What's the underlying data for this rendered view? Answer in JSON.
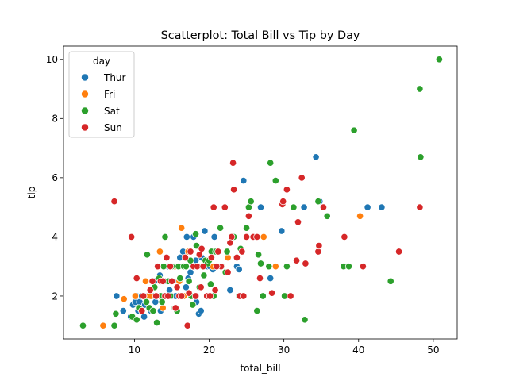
{
  "chart_data": {
    "type": "scatter",
    "title": "Scatterplot: Total Bill vs Tip by Day",
    "xlabel": "total_bill",
    "ylabel": "tip",
    "xlim": [
      0.5,
      53.2
    ],
    "ylim": [
      0.55,
      10.45
    ],
    "xticks": [
      10,
      20,
      30,
      40,
      50
    ],
    "yticks": [
      2,
      4,
      6,
      8,
      10
    ],
    "grid": false,
    "legend": {
      "title": "day",
      "placement": "top-left"
    },
    "series": [
      {
        "name": "Thur",
        "color": "#1f77b4",
        "points": [
          [
            7.6,
            2.0
          ],
          [
            8.5,
            1.5
          ],
          [
            9.5,
            1.3
          ],
          [
            9.8,
            1.7
          ],
          [
            10.1,
            1.8
          ],
          [
            10.3,
            2.0
          ],
          [
            10.7,
            1.8
          ],
          [
            11.0,
            2.0
          ],
          [
            11.3,
            1.3
          ],
          [
            11.4,
            1.7
          ],
          [
            11.7,
            2.0
          ],
          [
            12.0,
            2.0
          ],
          [
            12.2,
            1.5
          ],
          [
            12.5,
            2.0
          ],
          [
            12.7,
            2.5
          ],
          [
            12.9,
            2.0
          ],
          [
            13.0,
            2.0
          ],
          [
            13.3,
            2.0
          ],
          [
            13.5,
            1.5
          ],
          [
            13.8,
            2.0
          ],
          [
            14.0,
            2.5
          ],
          [
            14.3,
            2.0
          ],
          [
            14.7,
            2.2
          ],
          [
            15.0,
            2.0
          ],
          [
            15.5,
            2.0
          ],
          [
            15.9,
            2.5
          ],
          [
            16.3,
            2.0
          ],
          [
            16.6,
            2.0
          ],
          [
            16.9,
            2.3
          ],
          [
            17.2,
            2.6
          ],
          [
            17.5,
            2.8
          ],
          [
            17.8,
            3.0
          ],
          [
            18.3,
            1.8
          ],
          [
            18.6,
            1.4
          ],
          [
            18.9,
            1.5
          ],
          [
            19.4,
            4.2
          ],
          [
            19.8,
            3.0
          ],
          [
            20.1,
            3.0
          ],
          [
            20.5,
            2.9
          ],
          [
            20.7,
            4.0
          ],
          [
            16.5,
            3.5
          ],
          [
            17.0,
            4.0
          ],
          [
            17.9,
            4.0
          ],
          [
            18.2,
            3.2
          ],
          [
            19.0,
            3.3
          ],
          [
            20.9,
            3.5
          ],
          [
            22.8,
            2.2
          ],
          [
            23.7,
            3.0
          ],
          [
            24.0,
            2.9
          ],
          [
            24.6,
            5.9
          ],
          [
            26.9,
            5.0
          ],
          [
            28.2,
            2.6
          ],
          [
            29.7,
            4.2
          ],
          [
            32.7,
            5.0
          ],
          [
            34.3,
            6.7
          ],
          [
            34.8,
            5.2
          ],
          [
            41.2,
            5.0
          ],
          [
            43.1,
            5.0
          ],
          [
            16.1,
            3.3
          ],
          [
            15.1,
            3.0
          ],
          [
            14.5,
            3.0
          ],
          [
            13.4,
            2.7
          ],
          [
            12.8,
            1.8
          ],
          [
            11.9,
            2.0
          ],
          [
            10.5,
            1.5
          ]
        ]
      },
      {
        "name": "Fri",
        "color": "#ff7f0e",
        "points": [
          [
            5.8,
            1.0
          ],
          [
            8.6,
            1.9
          ],
          [
            10.1,
            2.0
          ],
          [
            11.5,
            2.5
          ],
          [
            11.9,
            2.0
          ],
          [
            12.2,
            2.0
          ],
          [
            12.5,
            1.5
          ],
          [
            13.0,
            2.0
          ],
          [
            13.4,
            3.5
          ],
          [
            13.8,
            1.6
          ],
          [
            15.4,
            3.0
          ],
          [
            16.0,
            2.5
          ],
          [
            16.3,
            4.3
          ],
          [
            16.6,
            2.0
          ],
          [
            17.2,
            3.5
          ],
          [
            18.3,
            3.0
          ],
          [
            20.5,
            3.0
          ],
          [
            22.5,
            3.3
          ],
          [
            27.3,
            4.0
          ],
          [
            28.9,
            3.0
          ],
          [
            40.2,
            4.7
          ]
        ]
      },
      {
        "name": "Sat",
        "color": "#2ca02c",
        "points": [
          [
            3.1,
            1.0
          ],
          [
            7.3,
            1.0
          ],
          [
            7.5,
            1.4
          ],
          [
            9.7,
            1.3
          ],
          [
            10.3,
            1.2
          ],
          [
            10.6,
            1.6
          ],
          [
            11.0,
            1.5
          ],
          [
            11.6,
            1.8
          ],
          [
            11.7,
            3.4
          ],
          [
            12.0,
            1.6
          ],
          [
            12.5,
            1.5
          ],
          [
            13.0,
            1.1
          ],
          [
            13.3,
            2.6
          ],
          [
            13.5,
            2.0
          ],
          [
            13.9,
            3.0
          ],
          [
            14.1,
            4.0
          ],
          [
            14.5,
            2.5
          ],
          [
            14.8,
            2.0
          ],
          [
            15.0,
            3.0
          ],
          [
            15.4,
            1.6
          ],
          [
            15.7,
            1.5
          ],
          [
            15.9,
            3.0
          ],
          [
            16.0,
            2.0
          ],
          [
            16.3,
            2.0
          ],
          [
            16.6,
            3.0
          ],
          [
            16.9,
            3.0
          ],
          [
            17.3,
            2.5
          ],
          [
            17.6,
            2.0
          ],
          [
            17.8,
            1.7
          ],
          [
            18.0,
            3.0
          ],
          [
            18.2,
            4.1
          ],
          [
            18.3,
            3.7
          ],
          [
            18.5,
            3.0
          ],
          [
            18.7,
            2.3
          ],
          [
            19.1,
            3.0
          ],
          [
            19.5,
            3.2
          ],
          [
            19.8,
            3.1
          ],
          [
            20.0,
            3.2
          ],
          [
            20.2,
            2.4
          ],
          [
            20.3,
            3.5
          ],
          [
            20.6,
            2.0
          ],
          [
            20.9,
            3.5
          ],
          [
            21.0,
            3.0
          ],
          [
            21.5,
            4.3
          ],
          [
            22.2,
            2.8
          ],
          [
            22.4,
            3.5
          ],
          [
            23.3,
            4.0
          ],
          [
            24.0,
            2.0
          ],
          [
            24.2,
            3.6
          ],
          [
            24.5,
            2.0
          ],
          [
            25.0,
            4.3
          ],
          [
            25.3,
            5.0
          ],
          [
            25.6,
            5.2
          ],
          [
            26.4,
            1.5
          ],
          [
            26.6,
            3.4
          ],
          [
            26.9,
            3.1
          ],
          [
            27.2,
            2.0
          ],
          [
            28.0,
            3.0
          ],
          [
            28.2,
            6.5
          ],
          [
            28.9,
            5.9
          ],
          [
            30.1,
            2.0
          ],
          [
            30.4,
            3.0
          ],
          [
            31.3,
            5.0
          ],
          [
            32.8,
            1.2
          ],
          [
            34.6,
            5.2
          ],
          [
            35.3,
            5.0
          ],
          [
            35.8,
            4.7
          ],
          [
            38.0,
            3.0
          ],
          [
            38.7,
            3.0
          ],
          [
            39.4,
            7.6
          ],
          [
            44.3,
            2.5
          ],
          [
            48.2,
            9.0
          ],
          [
            48.3,
            6.7
          ],
          [
            50.8,
            10.0
          ],
          [
            21.7,
            3.0
          ],
          [
            19.3,
            2.7
          ],
          [
            17.5,
            3.2
          ],
          [
            16.1,
            2.6
          ],
          [
            13.7,
            1.8
          ],
          [
            12.7,
            2.3
          ]
        ]
      },
      {
        "name": "Sun",
        "color": "#d62728",
        "points": [
          [
            7.3,
            5.2
          ],
          [
            9.6,
            4.0
          ],
          [
            10.3,
            2.6
          ],
          [
            11.2,
            2.0
          ],
          [
            12.4,
            2.5
          ],
          [
            12.9,
            2.0
          ],
          [
            13.1,
            3.0
          ],
          [
            13.5,
            2.5
          ],
          [
            14.1,
            2.0
          ],
          [
            14.3,
            3.3
          ],
          [
            14.8,
            3.0
          ],
          [
            15.0,
            2.5
          ],
          [
            15.5,
            1.6
          ],
          [
            16.0,
            2.0
          ],
          [
            16.3,
            2.0
          ],
          [
            16.8,
            3.3
          ],
          [
            17.1,
            1.0
          ],
          [
            17.5,
            3.5
          ],
          [
            17.9,
            3.0
          ],
          [
            18.2,
            2.0
          ],
          [
            18.4,
            3.0
          ],
          [
            18.7,
            3.4
          ],
          [
            19.2,
            3.0
          ],
          [
            19.7,
            2.0
          ],
          [
            20.1,
            2.0
          ],
          [
            20.3,
            3.3
          ],
          [
            20.6,
            5.0
          ],
          [
            20.8,
            2.2
          ],
          [
            21.2,
            3.5
          ],
          [
            21.6,
            3.0
          ],
          [
            22.1,
            5.0
          ],
          [
            22.5,
            2.8
          ],
          [
            23.0,
            4.0
          ],
          [
            23.2,
            6.5
          ],
          [
            23.3,
            5.6
          ],
          [
            23.7,
            3.3
          ],
          [
            24.1,
            2.0
          ],
          [
            24.4,
            3.5
          ],
          [
            24.6,
            2.0
          ],
          [
            25.0,
            4.0
          ],
          [
            25.3,
            4.7
          ],
          [
            25.9,
            4.0
          ],
          [
            26.8,
            2.6
          ],
          [
            28.4,
            2.1
          ],
          [
            29.8,
            5.1
          ],
          [
            30.4,
            5.6
          ],
          [
            30.9,
            2.0
          ],
          [
            31.7,
            3.2
          ],
          [
            31.9,
            4.5
          ],
          [
            32.4,
            6.0
          ],
          [
            32.9,
            3.1
          ],
          [
            34.6,
            3.5
          ],
          [
            34.7,
            3.7
          ],
          [
            35.3,
            5.0
          ],
          [
            38.1,
            4.0
          ],
          [
            40.6,
            3.0
          ],
          [
            45.4,
            3.5
          ],
          [
            48.2,
            5.0
          ],
          [
            29.9,
            5.2
          ],
          [
            22.8,
            3.8
          ],
          [
            21.0,
            3.0
          ],
          [
            19.0,
            3.6
          ],
          [
            15.7,
            2.3
          ],
          [
            14.5,
            2.0
          ],
          [
            13.8,
            2.5
          ],
          [
            12.1,
            2.2
          ],
          [
            11.0,
            1.5
          ],
          [
            17.3,
            2.1
          ],
          [
            18.9,
            2.3
          ],
          [
            26.4,
            4.0
          ]
        ]
      }
    ]
  }
}
